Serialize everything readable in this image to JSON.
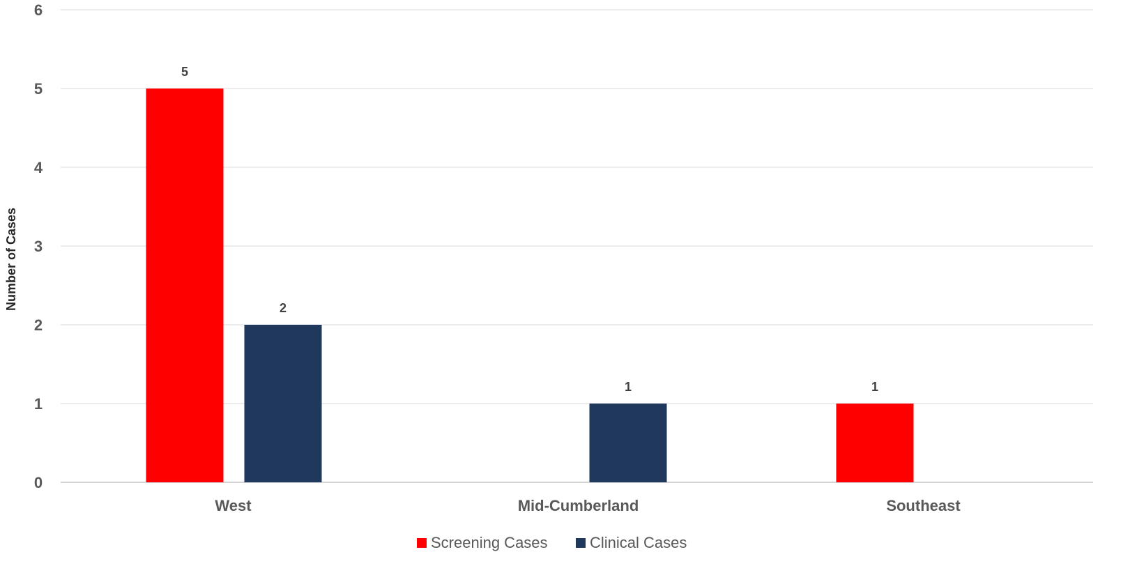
{
  "chart_data": {
    "type": "bar",
    "title": "",
    "xlabel": "",
    "ylabel": "Number of Cases",
    "ylim": [
      0,
      6
    ],
    "yticks": [
      "0",
      "1",
      "2",
      "3",
      "4",
      "5",
      "6"
    ],
    "grid": true,
    "legend_position": "bottom",
    "categories": [
      "West",
      "Mid-Cumberland",
      "Southeast"
    ],
    "series": [
      {
        "name": "Screening Cases",
        "color": "#ff0000",
        "values": [
          5,
          0,
          1
        ]
      },
      {
        "name": "Clinical Cases",
        "color": "#1f385c",
        "values": [
          2,
          1,
          0
        ]
      }
    ]
  }
}
